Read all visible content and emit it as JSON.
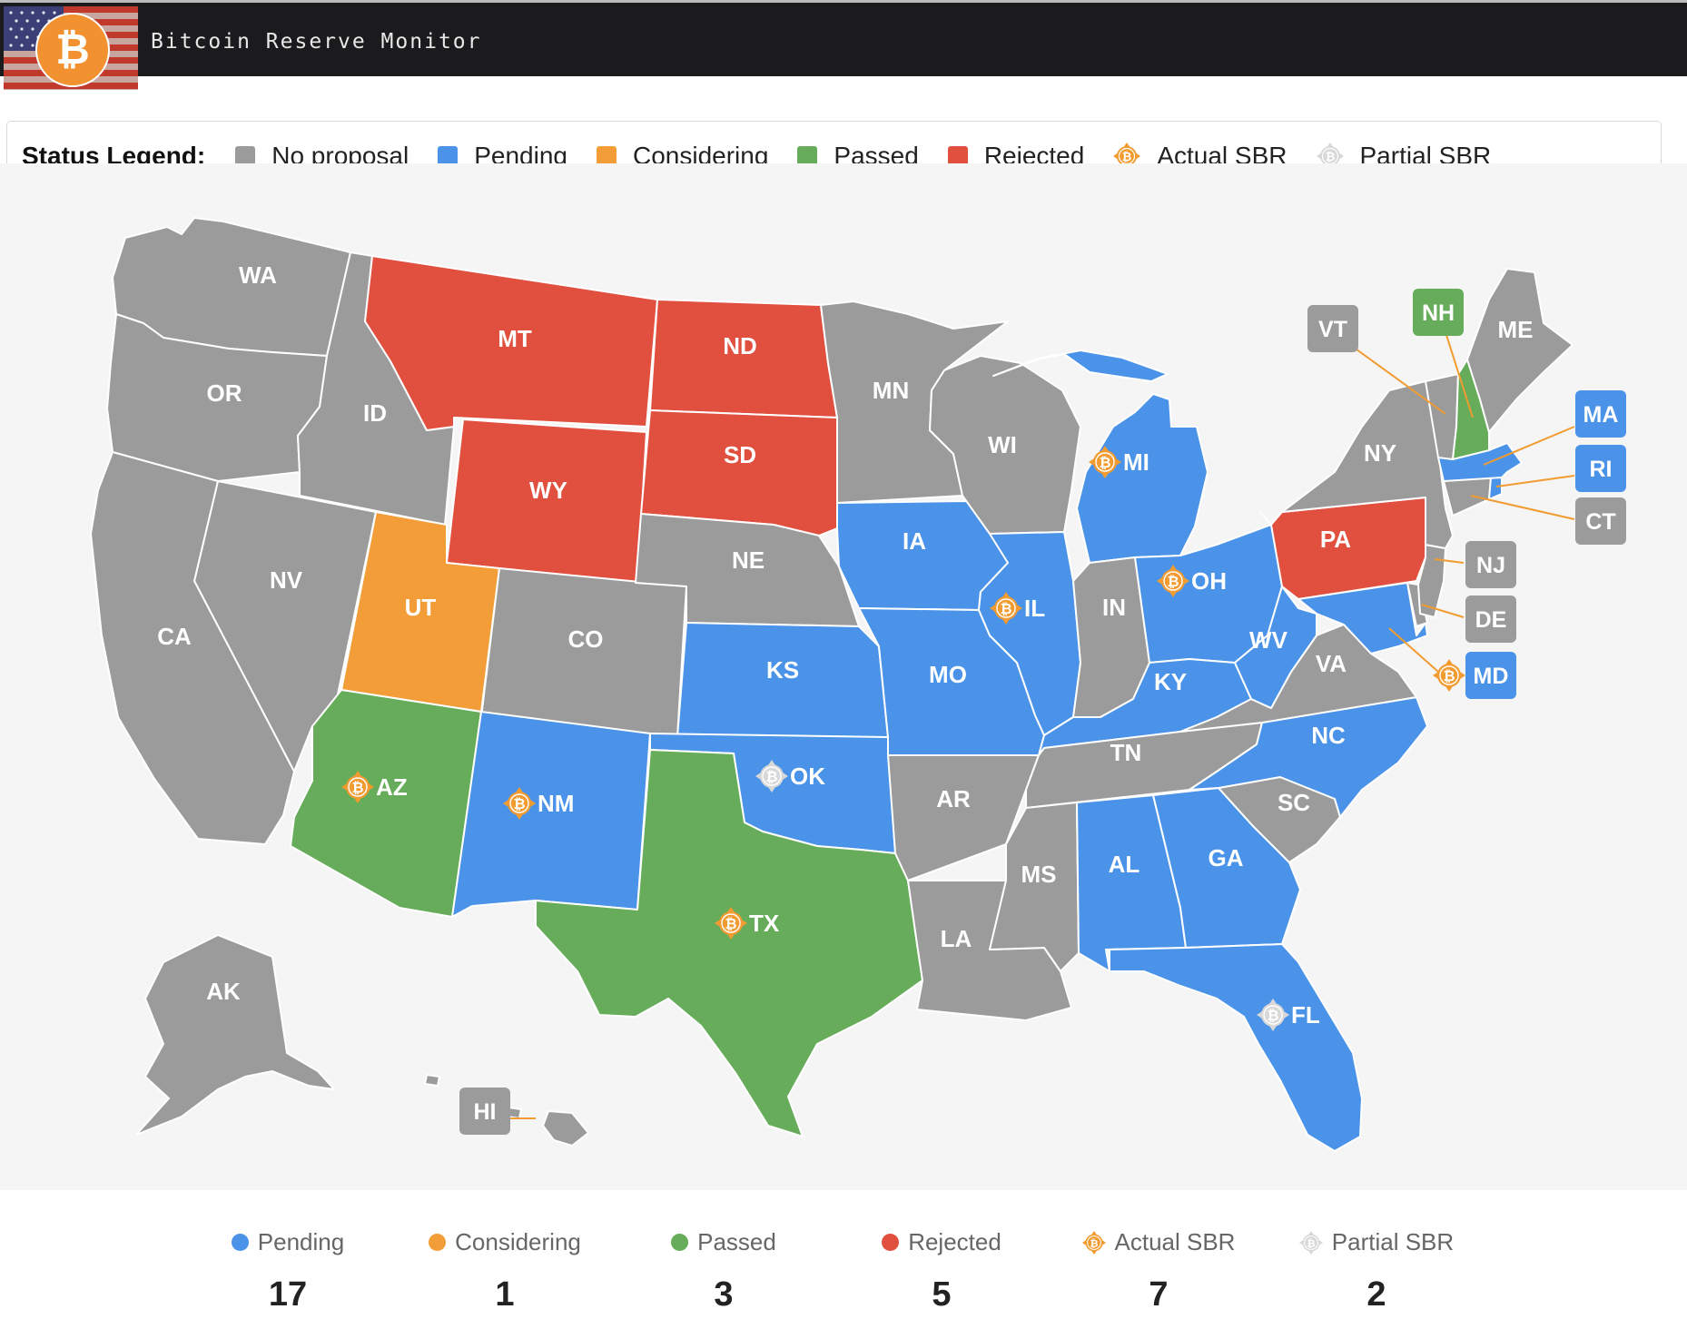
{
  "header": {
    "title": "Bitcoin Reserve Monitor",
    "logo_icon": "bitcoin-flag-logo"
  },
  "colors": {
    "no_proposal": "#9b9b9b",
    "pending": "#4a93e8",
    "considering": "#f29d38",
    "passed": "#66ac5a",
    "rejected": "#e14f3f",
    "sbr": "#f29b30",
    "partial_sbr": "#d8d8d8"
  },
  "legend": {
    "title": "Status Legend:",
    "items": [
      {
        "label": "No proposal",
        "kind": "swatch",
        "color": "#9b9b9b"
      },
      {
        "label": "Pending",
        "kind": "swatch",
        "color": "#4a93e8"
      },
      {
        "label": "Considering",
        "kind": "swatch",
        "color": "#f29d38"
      },
      {
        "label": "Passed",
        "kind": "swatch",
        "color": "#66ac5a"
      },
      {
        "label": "Rejected",
        "kind": "swatch",
        "color": "#e14f3f"
      },
      {
        "label": "Actual SBR",
        "kind": "icon",
        "icon": "bitcoin-reserve-icon"
      },
      {
        "label": "Partial SBR",
        "kind": "icon",
        "icon": "partial-reserve-icon"
      }
    ]
  },
  "states": [
    {
      "abbr": "WA",
      "status": "none"
    },
    {
      "abbr": "OR",
      "status": "none"
    },
    {
      "abbr": "CA",
      "status": "none"
    },
    {
      "abbr": "NV",
      "status": "none"
    },
    {
      "abbr": "ID",
      "status": "none"
    },
    {
      "abbr": "MT",
      "status": "rejected"
    },
    {
      "abbr": "WY",
      "status": "rejected"
    },
    {
      "abbr": "UT",
      "status": "considering"
    },
    {
      "abbr": "CO",
      "status": "none"
    },
    {
      "abbr": "AZ",
      "status": "passed",
      "sbr": "actual"
    },
    {
      "abbr": "NM",
      "status": "pending",
      "sbr": "actual"
    },
    {
      "abbr": "ND",
      "status": "rejected"
    },
    {
      "abbr": "SD",
      "status": "rejected"
    },
    {
      "abbr": "NE",
      "status": "none"
    },
    {
      "abbr": "KS",
      "status": "pending"
    },
    {
      "abbr": "OK",
      "status": "pending",
      "sbr": "partial"
    },
    {
      "abbr": "TX",
      "status": "passed",
      "sbr": "actual"
    },
    {
      "abbr": "MN",
      "status": "none"
    },
    {
      "abbr": "IA",
      "status": "pending"
    },
    {
      "abbr": "MO",
      "status": "pending"
    },
    {
      "abbr": "AR",
      "status": "none"
    },
    {
      "abbr": "LA",
      "status": "none"
    },
    {
      "abbr": "WI",
      "status": "none"
    },
    {
      "abbr": "IL",
      "status": "pending",
      "sbr": "actual"
    },
    {
      "abbr": "MI",
      "status": "pending",
      "sbr": "actual"
    },
    {
      "abbr": "IN",
      "status": "none"
    },
    {
      "abbr": "OH",
      "status": "pending",
      "sbr": "actual"
    },
    {
      "abbr": "KY",
      "status": "pending"
    },
    {
      "abbr": "TN",
      "status": "none"
    },
    {
      "abbr": "MS",
      "status": "none"
    },
    {
      "abbr": "AL",
      "status": "pending"
    },
    {
      "abbr": "GA",
      "status": "pending"
    },
    {
      "abbr": "FL",
      "status": "pending",
      "sbr": "partial"
    },
    {
      "abbr": "SC",
      "status": "none"
    },
    {
      "abbr": "NC",
      "status": "pending"
    },
    {
      "abbr": "VA",
      "status": "none"
    },
    {
      "abbr": "WV",
      "status": "pending"
    },
    {
      "abbr": "PA",
      "status": "rejected"
    },
    {
      "abbr": "NY",
      "status": "none"
    },
    {
      "abbr": "ME",
      "status": "none"
    },
    {
      "abbr": "AK",
      "status": "none"
    },
    {
      "abbr": "VT",
      "status": "none"
    },
    {
      "abbr": "NH",
      "status": "passed"
    },
    {
      "abbr": "MA",
      "status": "pending"
    },
    {
      "abbr": "RI",
      "status": "pending"
    },
    {
      "abbr": "CT",
      "status": "none"
    },
    {
      "abbr": "NJ",
      "status": "none"
    },
    {
      "abbr": "DE",
      "status": "none"
    },
    {
      "abbr": "MD",
      "status": "pending",
      "sbr": "actual"
    },
    {
      "abbr": "HI",
      "status": "none"
    }
  ],
  "stats": [
    {
      "label": "Pending",
      "count": "17",
      "kind": "dot",
      "color": "#4a93e8"
    },
    {
      "label": "Considering",
      "count": "1",
      "kind": "dot",
      "color": "#f29d38"
    },
    {
      "label": "Passed",
      "count": "3",
      "kind": "dot",
      "color": "#66ac5a"
    },
    {
      "label": "Rejected",
      "count": "5",
      "kind": "dot",
      "color": "#e14f3f"
    },
    {
      "label": "Actual SBR",
      "count": "7",
      "kind": "icon",
      "icon": "bitcoin-reserve-icon"
    },
    {
      "label": "Partial SBR",
      "count": "2",
      "kind": "icon",
      "icon": "partial-reserve-icon"
    }
  ]
}
